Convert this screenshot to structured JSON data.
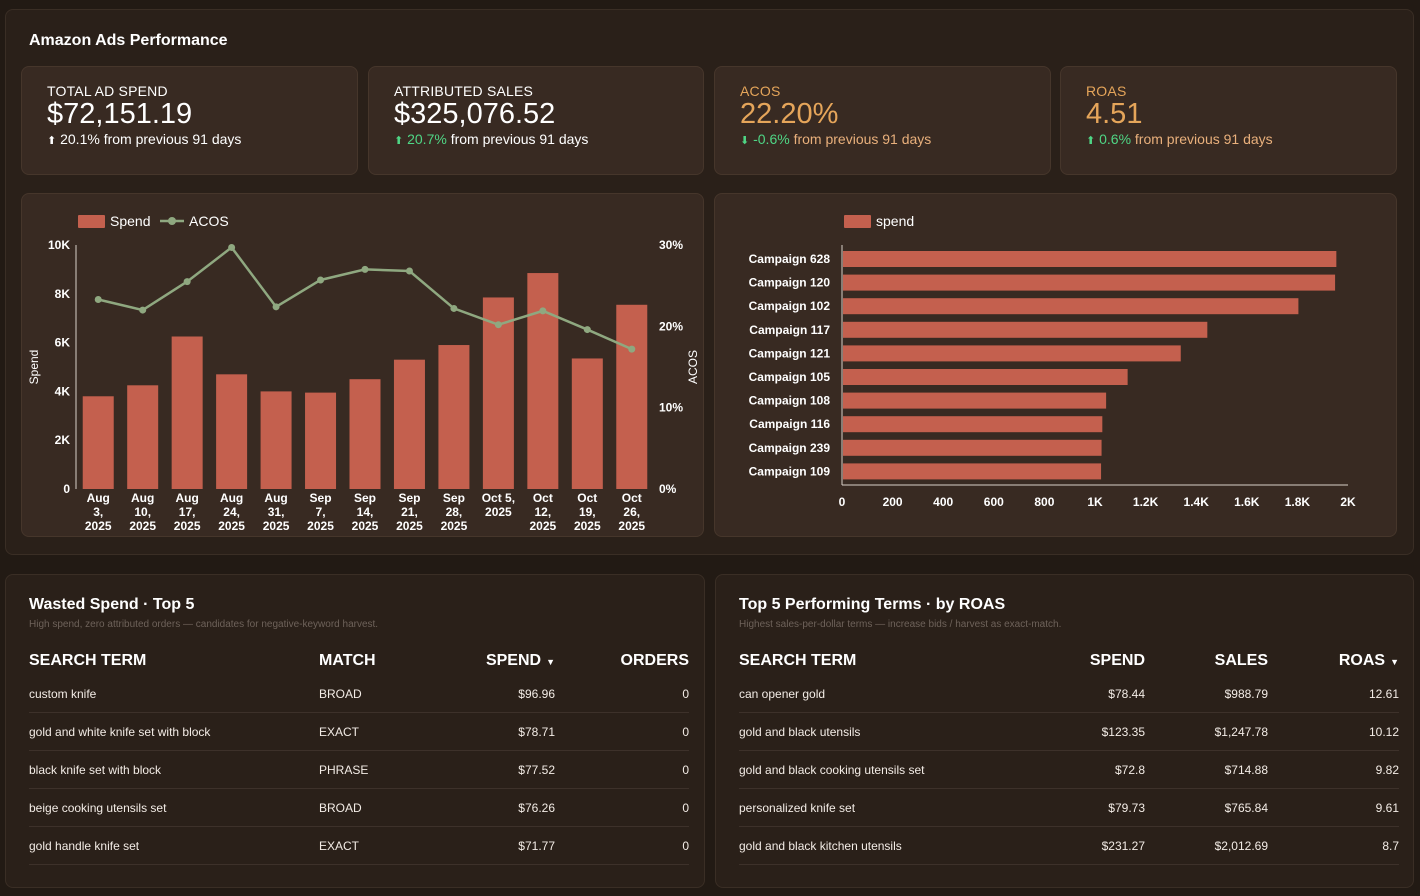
{
  "dashboard": {
    "title": "Amazon Ads Performance"
  },
  "kpis": [
    {
      "label": "TOTAL AD SPEND",
      "value": "$72,151.19",
      "arrow": "⬆",
      "delta": "20.1%",
      "delta_text": "from previous 91 days"
    },
    {
      "label": "ATTRIBUTED SALES",
      "value": "$325,076.52",
      "arrow": "⬆",
      "delta": "20.7%",
      "delta_text": "from previous 91 days"
    },
    {
      "label": "ACOS",
      "value": "22.20%",
      "arrow": "⬇",
      "delta": "-0.6%",
      "delta_text": "from previous 91 days"
    },
    {
      "label": "ROAS",
      "value": "4.51",
      "arrow": "⬆",
      "delta": "0.6%",
      "delta_text": "from previous 91 days"
    }
  ],
  "colors": {
    "bar": "#c4604e",
    "line": "#8fa880",
    "accent": "#e5a55a",
    "positive": "#4fd685"
  },
  "chart_data": [
    {
      "type": "bar",
      "legend_position": "top-left",
      "categories": [
        [
          "Aug",
          "3,",
          "2025"
        ],
        [
          "Aug",
          "10,",
          "2025"
        ],
        [
          "Aug",
          "17,",
          "2025"
        ],
        [
          "Aug",
          "24,",
          "2025"
        ],
        [
          "Aug",
          "31,",
          "2025"
        ],
        [
          "Sep",
          "7,",
          "2025"
        ],
        [
          "Sep",
          "14,",
          "2025"
        ],
        [
          "Sep",
          "21,",
          "2025"
        ],
        [
          "Sep",
          "28,",
          "2025"
        ],
        [
          "Oct 5,",
          "2025"
        ],
        [
          "Oct",
          "12,",
          "2025"
        ],
        [
          "Oct",
          "19,",
          "2025"
        ],
        [
          "Oct",
          "26,",
          "2025"
        ]
      ],
      "series": [
        {
          "name": "Spend",
          "type": "bar",
          "axis": "left",
          "values": [
            3800,
            4250,
            6250,
            4700,
            4000,
            3950,
            4500,
            5300,
            5900,
            7850,
            8850,
            5350,
            7550
          ]
        },
        {
          "name": "ACOS",
          "type": "line",
          "axis": "right",
          "values": [
            23.3,
            22.0,
            25.5,
            29.7,
            22.4,
            25.7,
            27.0,
            26.8,
            22.2,
            20.2,
            21.9,
            19.6,
            17.2
          ]
        }
      ],
      "ylabel": "Spend",
      "y2label": "ACOS",
      "ylim": [
        0,
        10000
      ],
      "y2lim": [
        0,
        30
      ],
      "yticks": [
        "0",
        "2K",
        "4K",
        "6K",
        "8K",
        "10K"
      ],
      "y2ticks": [
        "0%",
        "10%",
        "20%",
        "30%"
      ],
      "grid": false
    },
    {
      "type": "bar",
      "orientation": "horizontal",
      "legend_position": "top-left",
      "categories": [
        "Campaign 628",
        "Campaign 120",
        "Campaign 102",
        "Campaign 117",
        "Campaign 121",
        "Campaign 105",
        "Campaign 108",
        "Campaign 116",
        "Campaign 239",
        "Campaign 109"
      ],
      "series": [
        {
          "name": "spend",
          "values": [
            1950,
            1945,
            1800,
            1440,
            1335,
            1125,
            1040,
            1025,
            1022,
            1020
          ]
        }
      ],
      "xlim": [
        0,
        2000
      ],
      "xticks": [
        "0",
        "200",
        "400",
        "600",
        "800",
        "1K",
        "1.2K",
        "1.4K",
        "1.6K",
        "1.8K",
        "2K"
      ],
      "grid": false
    }
  ],
  "wasted": {
    "title": "Wasted Spend · Top 5",
    "subtitle": "High spend, zero attributed orders — candidates for negative-keyword harvest.",
    "headers": {
      "term": "SEARCH TERM",
      "match": "MATCH",
      "spend": "SPEND",
      "orders": "ORDERS"
    },
    "sort_icon": "▼",
    "rows": [
      {
        "term": "custom knife",
        "match": "BROAD",
        "spend": "$96.96",
        "orders": "0"
      },
      {
        "term": "gold and white knife set with block",
        "match": "EXACT",
        "spend": "$78.71",
        "orders": "0"
      },
      {
        "term": "black knife set with block",
        "match": "PHRASE",
        "spend": "$77.52",
        "orders": "0"
      },
      {
        "term": "beige cooking utensils set",
        "match": "BROAD",
        "spend": "$76.26",
        "orders": "0"
      },
      {
        "term": "gold handle knife set",
        "match": "EXACT",
        "spend": "$71.77",
        "orders": "0"
      }
    ]
  },
  "top": {
    "title": "Top 5 Performing Terms · by ROAS",
    "subtitle": "Highest sales-per-dollar terms — increase bids / harvest as exact-match.",
    "headers": {
      "term": "SEARCH TERM",
      "spend": "SPEND",
      "sales": "SALES",
      "roas": "ROAS"
    },
    "sort_icon": "▼",
    "rows": [
      {
        "term": "can opener gold",
        "spend": "$78.44",
        "sales": "$988.79",
        "roas": "12.61"
      },
      {
        "term": "gold and black utensils",
        "spend": "$123.35",
        "sales": "$1,247.78",
        "roas": "10.12"
      },
      {
        "term": "gold and black cooking utensils set",
        "spend": "$72.8",
        "sales": "$714.88",
        "roas": "9.82"
      },
      {
        "term": "personalized knife set",
        "spend": "$79.73",
        "sales": "$765.84",
        "roas": "9.61"
      },
      {
        "term": "gold and black kitchen utensils",
        "spend": "$231.27",
        "sales": "$2,012.69",
        "roas": "8.7"
      }
    ]
  }
}
